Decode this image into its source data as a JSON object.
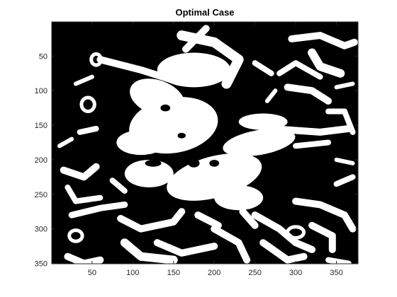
{
  "chart_data": {
    "type": "heatmap",
    "title": "Optimal Case",
    "xlabel": "",
    "ylabel": "",
    "colormap": [
      "#000000",
      "#ffffff"
    ],
    "xlim": [
      0.5,
      376.5
    ],
    "ylim": [
      0.5,
      350.5
    ],
    "y_direction": "reverse",
    "x_ticks": [
      50,
      100,
      150,
      200,
      250,
      300,
      350
    ],
    "y_ticks": [
      50,
      100,
      150,
      200,
      250,
      300,
      350
    ],
    "x_tick_labels": [
      "50",
      "100",
      "150",
      "200",
      "250",
      "300",
      "350"
    ],
    "y_tick_labels": [
      "50",
      "100",
      "150",
      "200",
      "250",
      "300",
      "350"
    ],
    "grid": false
  }
}
